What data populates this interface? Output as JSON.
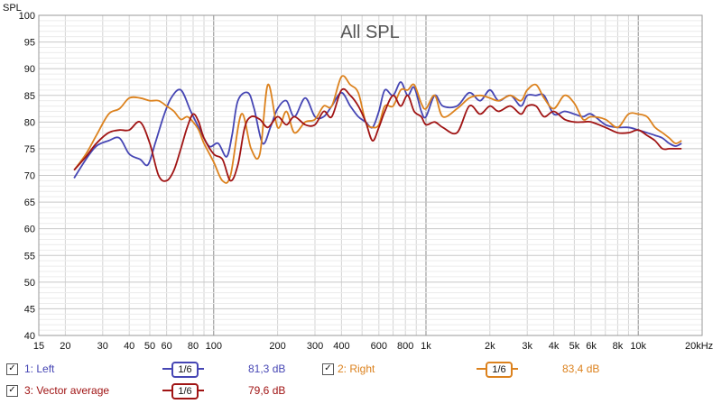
{
  "chart_data": {
    "type": "line",
    "title": "All SPL",
    "ylabel": "SPL",
    "xlabel_unit": "kHz",
    "x_scale": "log",
    "xlim": [
      15,
      20000
    ],
    "ylim": [
      40,
      100
    ],
    "grid": true,
    "y_ticks": [
      "40",
      "45",
      "50",
      "55",
      "60",
      "65",
      "70",
      "75",
      "80",
      "85",
      "90",
      "95",
      "100"
    ],
    "x_ticks": [
      "15",
      "20",
      "30",
      "40",
      "50",
      "60",
      "80",
      "100",
      "200",
      "300",
      "400",
      "600",
      "800",
      "1k",
      "2k",
      "3k",
      "4k",
      "5k",
      "6k",
      "8k",
      "10k",
      "20kHz"
    ],
    "x_tick_values": [
      15,
      20,
      30,
      40,
      50,
      60,
      80,
      100,
      200,
      300,
      400,
      600,
      800,
      1000,
      2000,
      3000,
      4000,
      5000,
      6000,
      8000,
      10000,
      20000
    ],
    "series": [
      {
        "name": "Left",
        "color": "#4646b4",
        "x": [
          22,
          25,
          28,
          32,
          36,
          40,
          45,
          49,
          53,
          58,
          63,
          70,
          78,
          85,
          95,
          105,
          115,
          122,
          130,
          145,
          155,
          170,
          185,
          200,
          220,
          240,
          270,
          300,
          330,
          360,
          400,
          440,
          480,
          520,
          560,
          600,
          640,
          700,
          760,
          820,
          880,
          950,
          1000,
          1100,
          1200,
          1400,
          1600,
          1800,
          2000,
          2200,
          2500,
          2800,
          3000,
          3300,
          3600,
          4000,
          4500,
          5000,
          5500,
          6000,
          7000,
          8000,
          9000,
          10000,
          11000,
          12000,
          13000,
          14000,
          15000,
          16000
        ],
        "y": [
          69.5,
          73,
          75.5,
          76.5,
          77,
          74,
          73,
          72,
          76,
          81,
          84.5,
          86,
          82,
          79,
          75.5,
          76,
          73.5,
          77.5,
          84,
          85.5,
          82.5,
          76,
          79,
          82.5,
          84,
          81,
          84.5,
          81,
          81,
          83,
          85.5,
          83,
          81,
          80,
          79,
          82,
          86,
          85,
          87.5,
          85,
          86.5,
          82,
          81,
          85,
          83,
          83,
          85.5,
          84,
          86,
          84,
          85,
          83,
          85,
          85,
          85,
          81.5,
          82,
          81.5,
          81,
          81.5,
          79.5,
          79,
          79,
          78.5,
          78,
          77.5,
          77,
          76,
          75.5,
          76
        ]
      },
      {
        "name": "Right",
        "color": "#dc821e",
        "x": [
          22,
          25,
          28,
          32,
          36,
          40,
          45,
          50,
          55,
          60,
          65,
          70,
          75,
          80,
          85,
          90,
          100,
          110,
          120,
          135,
          150,
          165,
          180,
          200,
          220,
          240,
          270,
          300,
          330,
          360,
          400,
          440,
          480,
          520,
          560,
          600,
          640,
          700,
          760,
          820,
          880,
          950,
          1000,
          1100,
          1200,
          1400,
          1600,
          1800,
          2000,
          2200,
          2500,
          2800,
          3000,
          3300,
          3600,
          4000,
          4500,
          5000,
          5500,
          6000,
          7000,
          8000,
          9000,
          10000,
          11000,
          12000,
          13000,
          14000,
          15000,
          16000
        ],
        "y": [
          71,
          74,
          77.5,
          81.5,
          82.5,
          84.5,
          84.5,
          84,
          84,
          83,
          82,
          80.5,
          81,
          80,
          78.5,
          76,
          72.5,
          69,
          70,
          81.5,
          75,
          74,
          87,
          79,
          82,
          78,
          80,
          80.5,
          83,
          83,
          88.5,
          87,
          85.5,
          80,
          79,
          79.5,
          83,
          83,
          86,
          86,
          87,
          83.5,
          82.5,
          85,
          81,
          82.5,
          84.5,
          85,
          84.5,
          84,
          85,
          84,
          86,
          87,
          84.5,
          82.5,
          85,
          83.5,
          80.5,
          81,
          80.5,
          79,
          81.5,
          81.5,
          81,
          79,
          78,
          77,
          76,
          76.5
        ]
      },
      {
        "name": "Vector average",
        "color": "#a01414",
        "x": [
          22,
          25,
          28,
          32,
          36,
          40,
          45,
          50,
          55,
          60,
          65,
          70,
          75,
          80,
          85,
          90,
          100,
          110,
          120,
          130,
          140,
          150,
          165,
          180,
          200,
          220,
          240,
          270,
          300,
          330,
          360,
          400,
          440,
          480,
          520,
          560,
          600,
          640,
          700,
          760,
          820,
          880,
          950,
          1000,
          1100,
          1200,
          1400,
          1600,
          1800,
          2000,
          2200,
          2500,
          2800,
          3000,
          3300,
          3600,
          4000,
          4500,
          5000,
          5500,
          6000,
          7000,
          8000,
          9000,
          10000,
          11000,
          12000,
          13000,
          14000,
          15000,
          16000
        ],
        "y": [
          71,
          73.5,
          76,
          78,
          78.5,
          78.5,
          80,
          76,
          70,
          69,
          71,
          75,
          79,
          81.5,
          80,
          77,
          74,
          73,
          69,
          72,
          79,
          81,
          80.5,
          79,
          81,
          79.5,
          81,
          79.5,
          79.5,
          82,
          81,
          86,
          85,
          83,
          80,
          76.5,
          79,
          82,
          85,
          83,
          85,
          82,
          81,
          79.5,
          80,
          79,
          78,
          83,
          81.5,
          83,
          82,
          83,
          81.5,
          83,
          83,
          81,
          82,
          80.5,
          80,
          80,
          80,
          79,
          78,
          78,
          78.5,
          77.5,
          76.5,
          75,
          75,
          75,
          75
        ]
      }
    ]
  },
  "legend": {
    "items": [
      {
        "checked": "✓",
        "label": "1: Left",
        "smoothing": "1/6",
        "value": "81,3 dB",
        "color": "#4646b4"
      },
      {
        "checked": "✓",
        "label": "2: Right",
        "smoothing": "1/6",
        "value": "83,4 dB",
        "color": "#dc821e"
      },
      {
        "checked": "✓",
        "label": "3: Vector average",
        "smoothing": "1/6",
        "value": "79,6 dB",
        "color": "#a01414"
      }
    ]
  }
}
